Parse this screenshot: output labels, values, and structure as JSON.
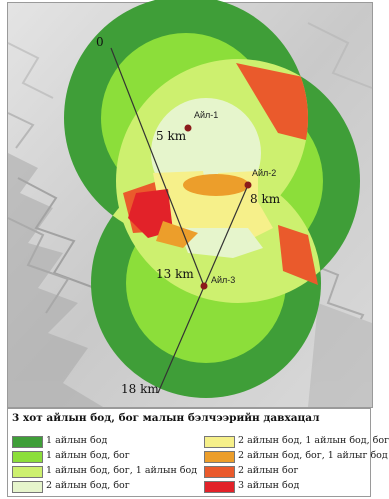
{
  "map": {
    "distance_labels": [
      "0",
      "5 km",
      "8 km",
      "13 km",
      "18 km"
    ],
    "settlements": [
      "Айл-1",
      "Айл-2",
      "Айл-3"
    ]
  },
  "legend": {
    "title": "3 хот айлын бод, бог малын бэлчээрийн давхацал",
    "items": [
      {
        "label": "1 айлын бод",
        "color": "#3f9e38"
      },
      {
        "label": "1 айлын бод, бог",
        "color": "#8cde3a"
      },
      {
        "label": "1 айлын бод, бог, 1 айлын бод",
        "color": "#cdf06f"
      },
      {
        "label": "2 айлын бод, бог",
        "color": "#e6f5cc"
      },
      {
        "label": "2 айлын бод, 1 айлын бод, бог",
        "color": "#f6f08a"
      },
      {
        "label": "2 айлын бод, бог, 1 айлыг бод",
        "color": "#ec9e2b"
      },
      {
        "label": "2 айлын бог",
        "color": "#ea5a2c"
      },
      {
        "label": "3 айлын бод",
        "color": "#e22229"
      }
    ]
  }
}
